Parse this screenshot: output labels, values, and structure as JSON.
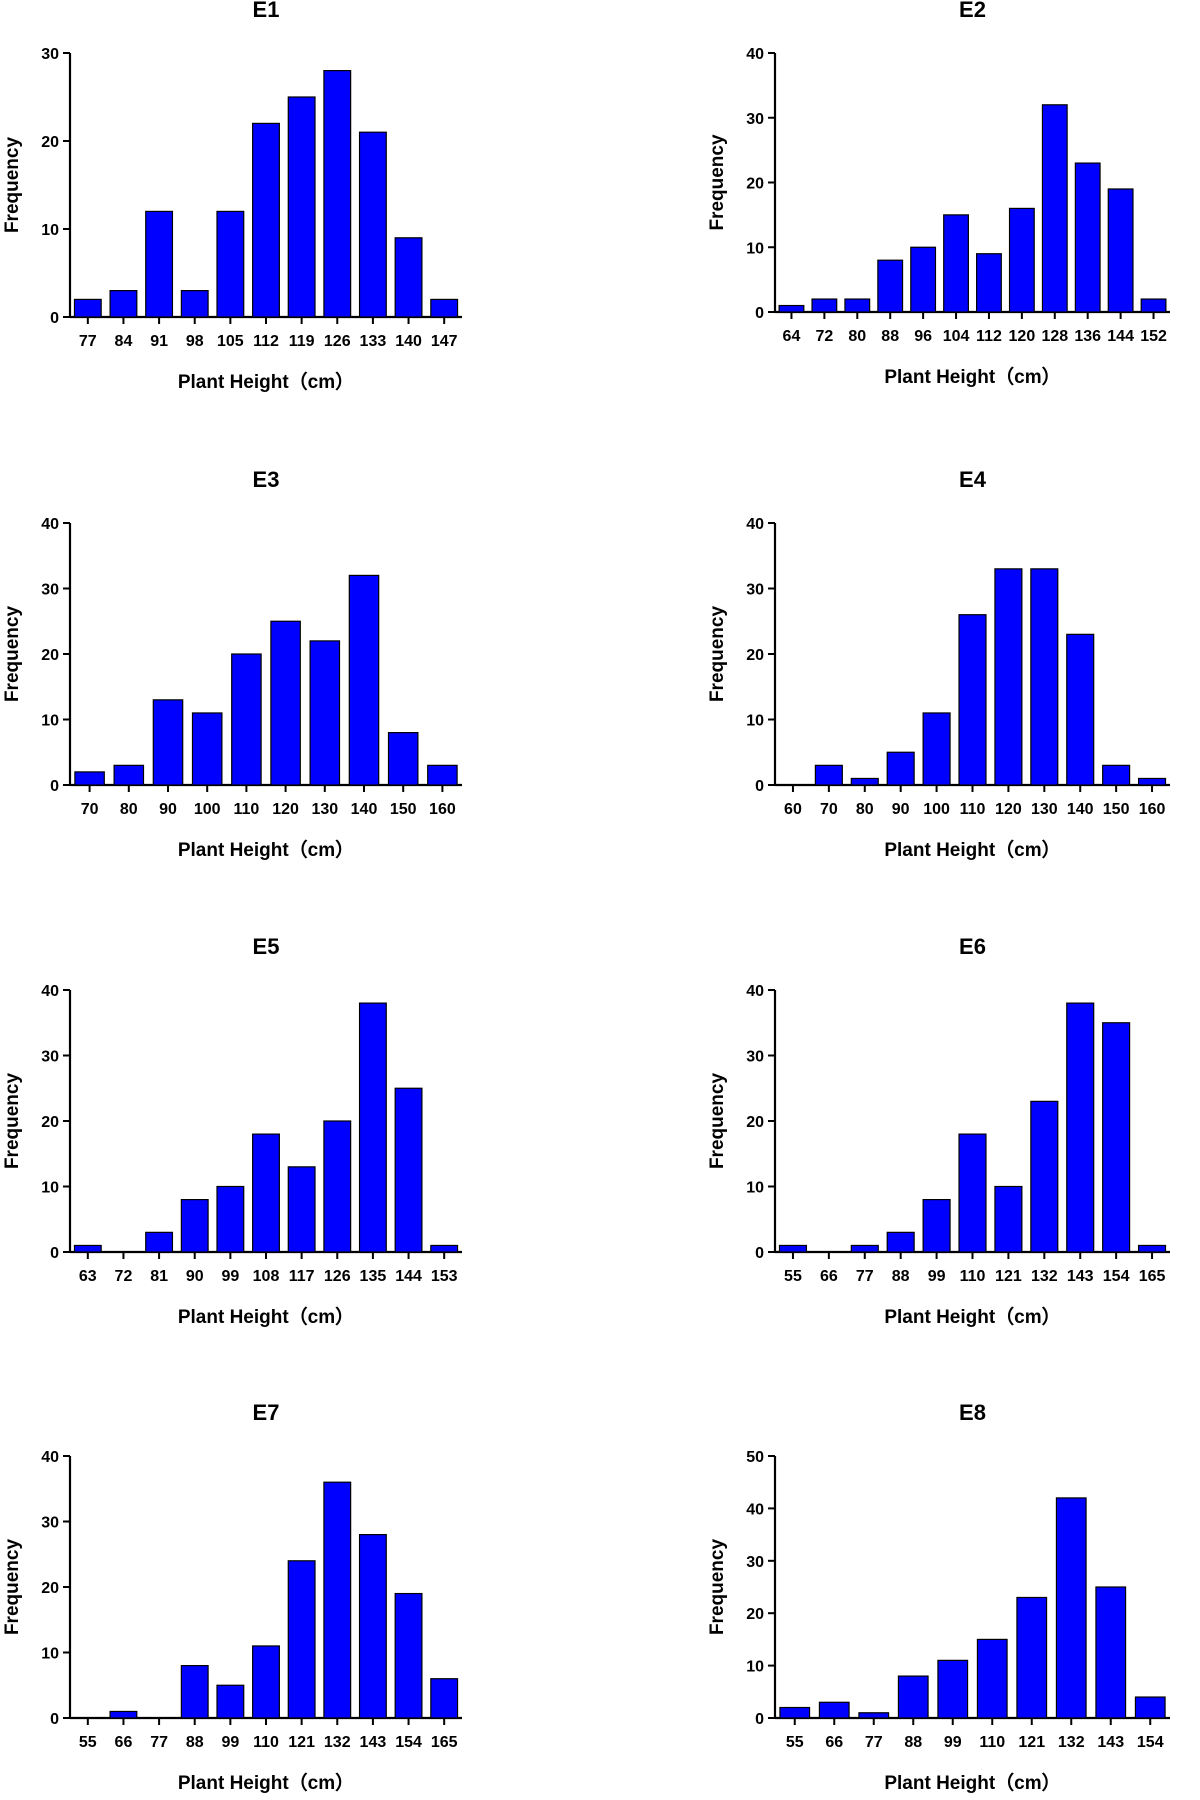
{
  "colors": {
    "bar": "#0000FF",
    "axis": "#000000",
    "background": "#FFFFFF"
  },
  "chart_data": [
    {
      "type": "bar",
      "title": "E1",
      "xlabel": "Plant Height（cm）",
      "ylabel": "Frequency",
      "ylim": [
        0,
        30
      ],
      "yticks": [
        0,
        10,
        20,
        30
      ],
      "categories": [
        "77",
        "84",
        "91",
        "98",
        "105",
        "112",
        "119",
        "126",
        "133",
        "140",
        "147"
      ],
      "values": [
        2,
        3,
        12,
        3,
        12,
        22,
        25,
        28,
        21,
        9,
        2
      ]
    },
    {
      "type": "bar",
      "title": "E2",
      "xlabel": "Plant Height（cm）",
      "ylabel": "Frequency",
      "ylim": [
        0,
        40
      ],
      "yticks": [
        0,
        10,
        20,
        30,
        40
      ],
      "categories": [
        "64",
        "72",
        "80",
        "88",
        "96",
        "104",
        "112",
        "120",
        "128",
        "136",
        "144",
        "152"
      ],
      "values": [
        1,
        2,
        2,
        8,
        10,
        15,
        9,
        16,
        32,
        23,
        19,
        2
      ]
    },
    {
      "type": "bar",
      "title": "E3",
      "xlabel": "Plant Height（cm）",
      "ylabel": "Frequency",
      "ylim": [
        0,
        40
      ],
      "yticks": [
        0,
        10,
        20,
        30,
        40
      ],
      "categories": [
        "70",
        "80",
        "90",
        "100",
        "110",
        "120",
        "130",
        "140",
        "150",
        "160"
      ],
      "values": [
        2,
        3,
        13,
        11,
        20,
        25,
        22,
        32,
        8,
        3
      ]
    },
    {
      "type": "bar",
      "title": "E4",
      "xlabel": "Plant Height（cm）",
      "ylabel": "Frequency",
      "ylim": [
        0,
        40
      ],
      "yticks": [
        0,
        10,
        20,
        30,
        40
      ],
      "categories": [
        "60",
        "70",
        "80",
        "90",
        "100",
        "110",
        "120",
        "130",
        "140",
        "150",
        "160"
      ],
      "values": [
        0,
        3,
        1,
        5,
        11,
        26,
        33,
        33,
        23,
        3,
        1
      ]
    },
    {
      "type": "bar",
      "title": "E5",
      "xlabel": "Plant Height（cm）",
      "ylabel": "Frequency",
      "ylim": [
        0,
        40
      ],
      "yticks": [
        0,
        10,
        20,
        30,
        40
      ],
      "categories": [
        "63",
        "72",
        "81",
        "90",
        "99",
        "108",
        "117",
        "126",
        "135",
        "144",
        "153"
      ],
      "values": [
        1,
        0,
        3,
        8,
        10,
        18,
        13,
        20,
        38,
        25,
        1
      ]
    },
    {
      "type": "bar",
      "title": "E6",
      "xlabel": "Plant Height（cm）",
      "ylabel": "Frequency",
      "ylim": [
        0,
        40
      ],
      "yticks": [
        0,
        10,
        20,
        30,
        40
      ],
      "categories": [
        "55",
        "66",
        "77",
        "88",
        "99",
        "110",
        "121",
        "132",
        "143",
        "154",
        "165"
      ],
      "values": [
        1,
        0,
        1,
        3,
        8,
        18,
        10,
        23,
        38,
        35,
        1
      ]
    },
    {
      "type": "bar",
      "title": "E7",
      "xlabel": "Plant Height（cm）",
      "ylabel": "Frequency",
      "ylim": [
        0,
        40
      ],
      "yticks": [
        0,
        10,
        20,
        30,
        40
      ],
      "categories": [
        "55",
        "66",
        "77",
        "88",
        "99",
        "110",
        "121",
        "132",
        "143",
        "154",
        "165"
      ],
      "values": [
        0,
        1,
        0,
        8,
        5,
        11,
        24,
        36,
        28,
        19,
        6
      ]
    },
    {
      "type": "bar",
      "title": "E8",
      "xlabel": "Plant Height（cm）",
      "ylabel": "Frequency",
      "ylim": [
        0,
        50
      ],
      "yticks": [
        0,
        10,
        20,
        30,
        40,
        50
      ],
      "categories": [
        "55",
        "66",
        "77",
        "88",
        "99",
        "110",
        "121",
        "132",
        "143",
        "154"
      ],
      "values": [
        2,
        3,
        1,
        8,
        11,
        15,
        23,
        42,
        25,
        4
      ]
    }
  ]
}
